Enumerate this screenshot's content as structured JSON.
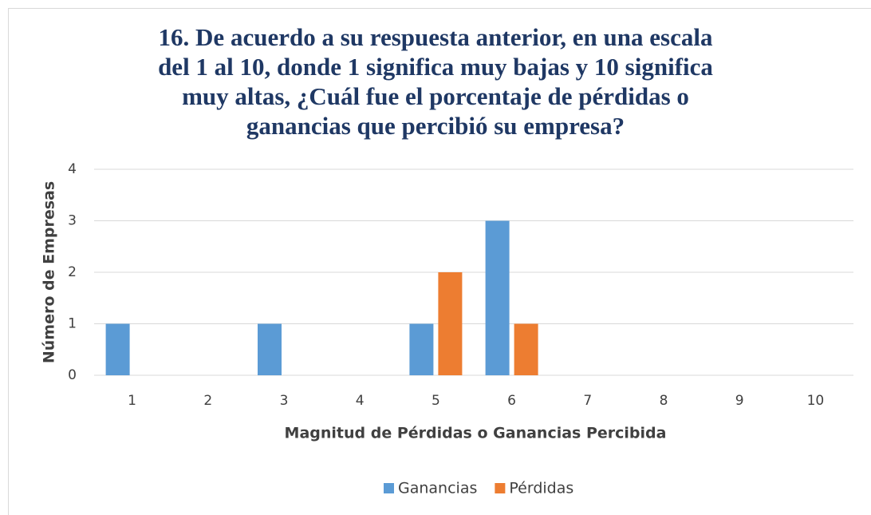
{
  "chart_data": {
    "type": "bar",
    "title": "16. De acuerdo a su respuesta anterior, en una escala del 1 al 10, donde 1 significa muy bajas y 10 significa muy altas, ¿Cuál fue el porcentaje de pérdidas o ganancias que percibió su empresa?",
    "x_label": "Magnitud de Pérdidas o Ganancias Percibida",
    "y_label": "Número de Empresas",
    "categories": [
      "1",
      "2",
      "3",
      "4",
      "5",
      "6",
      "7",
      "8",
      "9",
      "10"
    ],
    "series": [
      {
        "name": "Ganancias",
        "color": "#5b9bd5",
        "values": [
          1,
          0,
          1,
          0,
          1,
          3,
          0,
          0,
          0,
          0
        ]
      },
      {
        "name": "Pérdidas",
        "color": "#ed7d31",
        "values": [
          0,
          0,
          0,
          0,
          2,
          1,
          0,
          0,
          0,
          0
        ]
      }
    ],
    "ylim": [
      0,
      4
    ],
    "yticks": [
      0,
      1,
      2,
      3,
      4
    ],
    "grid": true,
    "legend": "bottom"
  }
}
